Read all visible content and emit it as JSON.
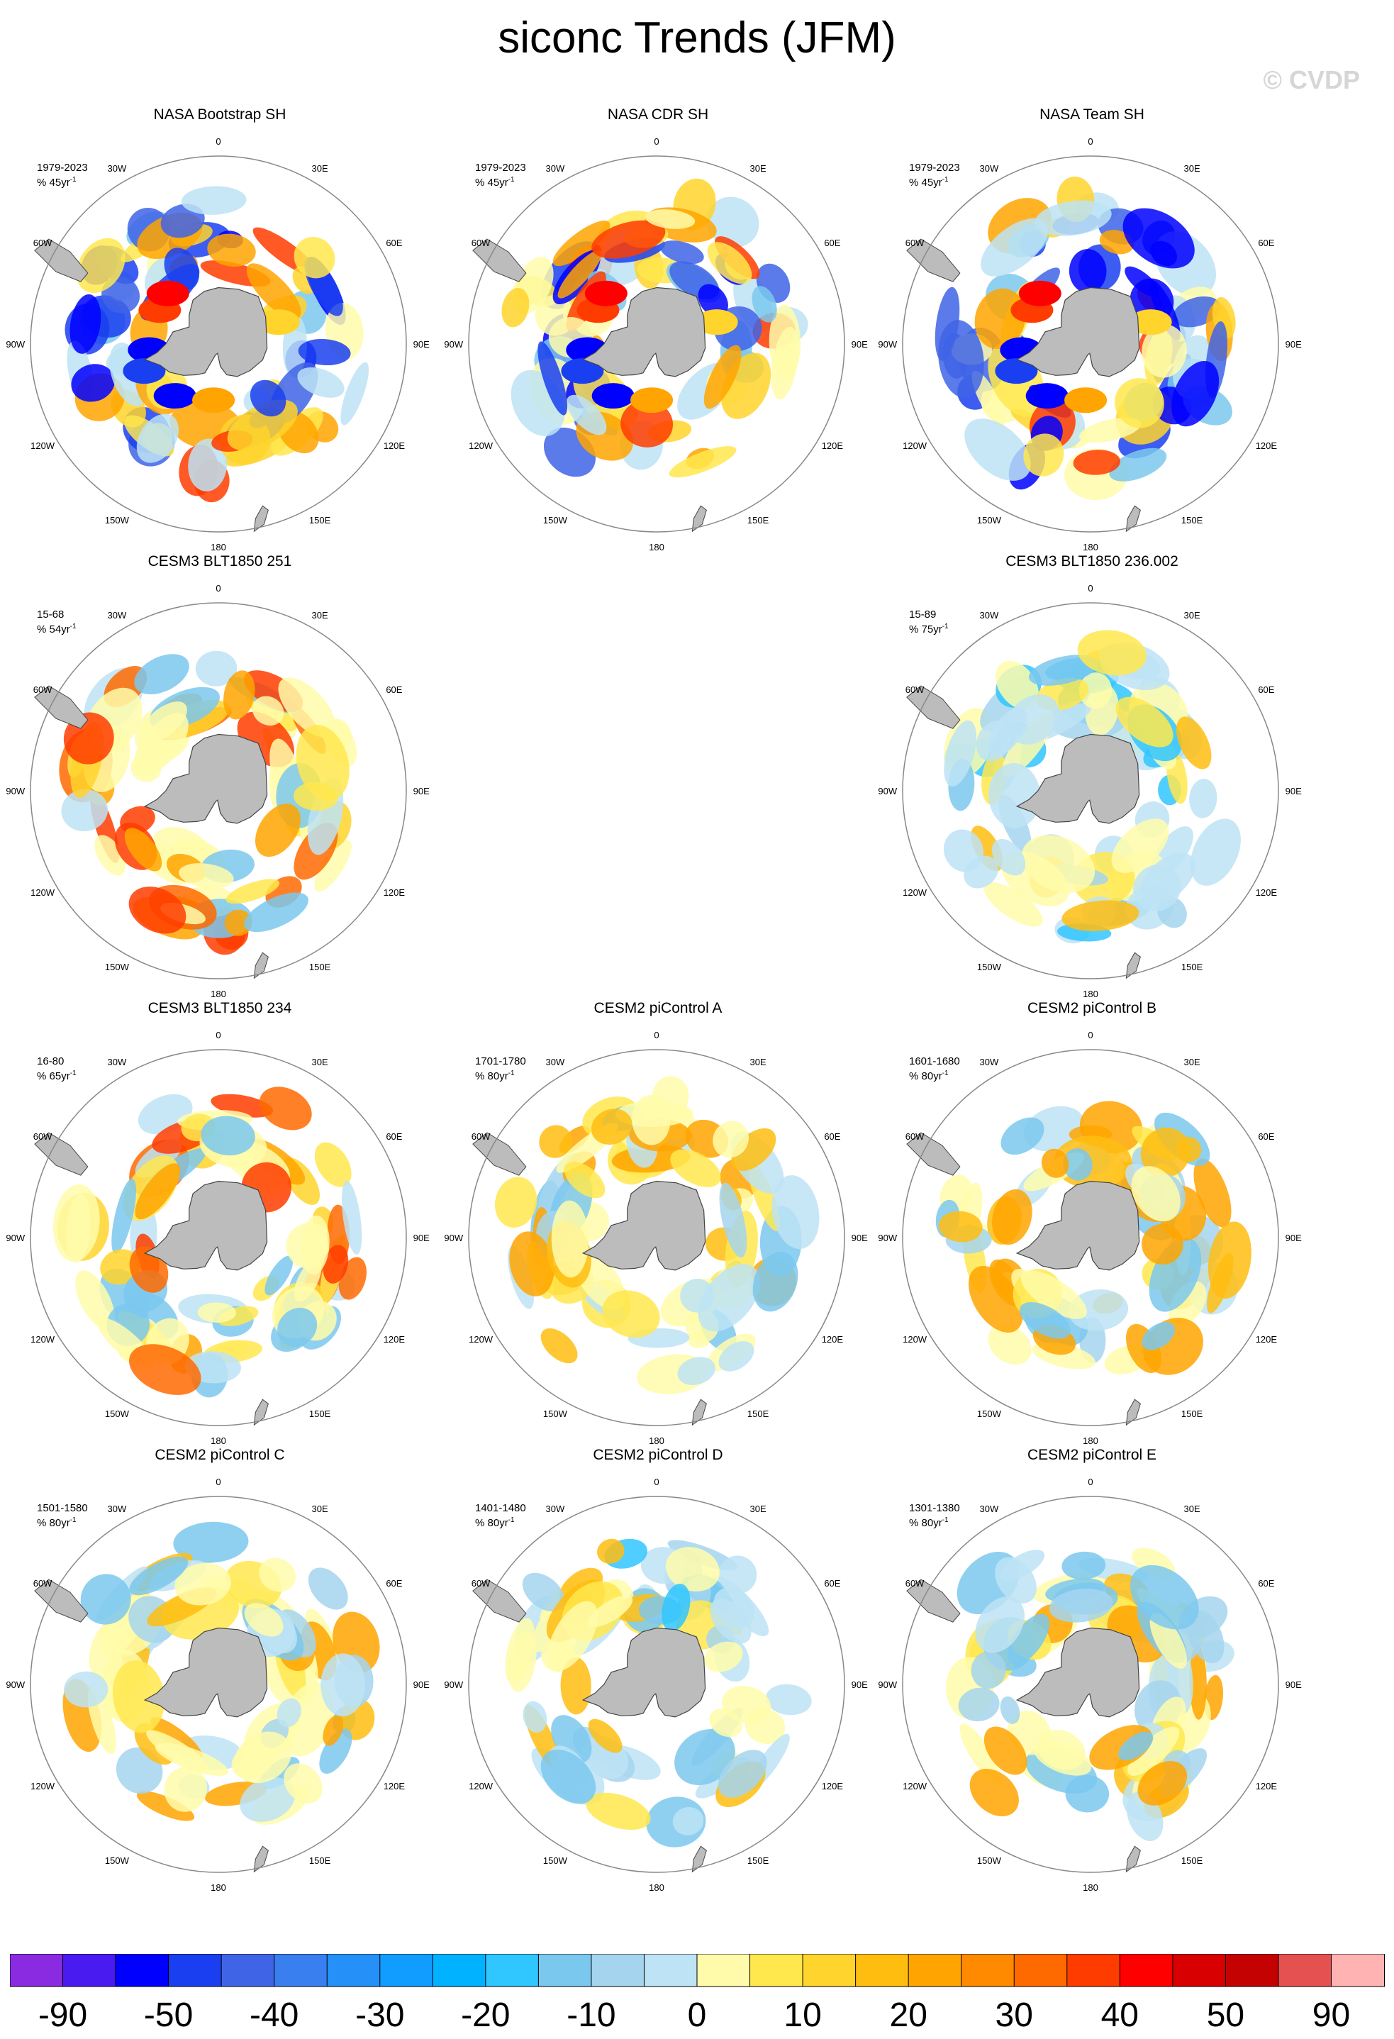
{
  "title": "siconc Trends (JFM)",
  "watermark": "© CVDP",
  "colors": {
    "land": "#bcbcbc",
    "coast": "#444444",
    "ring": "#888888"
  },
  "longitude_labels": [
    "0",
    "30E",
    "60E",
    "90E",
    "120E",
    "150E",
    "180",
    "150W",
    "120W",
    "90W",
    "60W",
    "30W"
  ],
  "panels": [
    {
      "title": "NASA Bootstrap SH",
      "period": "1979-2023",
      "units": "% 45yr",
      "units_sup": "-1",
      "pattern": "obs",
      "seed": 11
    },
    {
      "title": "NASA CDR SH",
      "period": "1979-2023",
      "units": "% 45yr",
      "units_sup": "-1",
      "pattern": "obs",
      "seed": 12
    },
    {
      "title": "NASA Team SH",
      "period": "1979-2023",
      "units": "% 45yr",
      "units_sup": "-1",
      "pattern": "obs",
      "seed": 13
    },
    {
      "title": "CESM3 BLT1850 251",
      "period": "15-68",
      "units": "% 54yr",
      "units_sup": "-1",
      "pattern": "warm",
      "seed": 21
    },
    null,
    {
      "title": "CESM3 BLT1850 236.002",
      "period": "15-89",
      "units": "% 75yr",
      "units_sup": "-1",
      "pattern": "cool",
      "seed": 22
    },
    {
      "title": "CESM3 BLT1850 234",
      "period": "16-80",
      "units": "% 65yr",
      "units_sup": "-1",
      "pattern": "warm",
      "seed": 23
    },
    {
      "title": "CESM2 piControl A",
      "period": "1701-1780",
      "units": "% 80yr",
      "units_sup": "-1",
      "pattern": "mixed",
      "seed": 31
    },
    {
      "title": "CESM2 piControl B",
      "period": "1601-1680",
      "units": "% 80yr",
      "units_sup": "-1",
      "pattern": "mixed",
      "seed": 32
    },
    {
      "title": "CESM2 piControl C",
      "period": "1501-1580",
      "units": "% 80yr",
      "units_sup": "-1",
      "pattern": "mixed",
      "seed": 33
    },
    {
      "title": "CESM2 piControl D",
      "period": "1401-1480",
      "units": "% 80yr",
      "units_sup": "-1",
      "pattern": "cool",
      "seed": 34
    },
    {
      "title": "CESM2 piControl E",
      "period": "1301-1380",
      "units": "% 80yr",
      "units_sup": "-1",
      "pattern": "mixed",
      "seed": 35
    }
  ],
  "chart_data": {
    "type": "heatmap",
    "projection": "south-polar-stereographic",
    "variable": "siconc",
    "season": "JFM",
    "colorbar": {
      "colors": [
        "#8a2be2",
        "#4a1bf0",
        "#0000ff",
        "#1a3ff0",
        "#3f64e6",
        "#3a7ff0",
        "#2590f8",
        "#119cff",
        "#00b2ff",
        "#30c6ff",
        "#7bc8ef",
        "#a5d5ee",
        "#bde3f5",
        "#fffbaa",
        "#ffe74e",
        "#ffd42c",
        "#ffbd10",
        "#ffa400",
        "#ff8a00",
        "#ff6a00",
        "#ff3c00",
        "#ff0000",
        "#d80000",
        "#c50202",
        "#e55151",
        "#ffb3b3"
      ],
      "tick_labels": [
        "-90",
        "-50",
        "-40",
        "-30",
        "-20",
        "-10",
        "0",
        "10",
        "20",
        "30",
        "40",
        "50",
        "90"
      ],
      "tick_boundaries": [
        1,
        3,
        5,
        7,
        9,
        11,
        13,
        15,
        17,
        19,
        21,
        23,
        25
      ]
    }
  }
}
